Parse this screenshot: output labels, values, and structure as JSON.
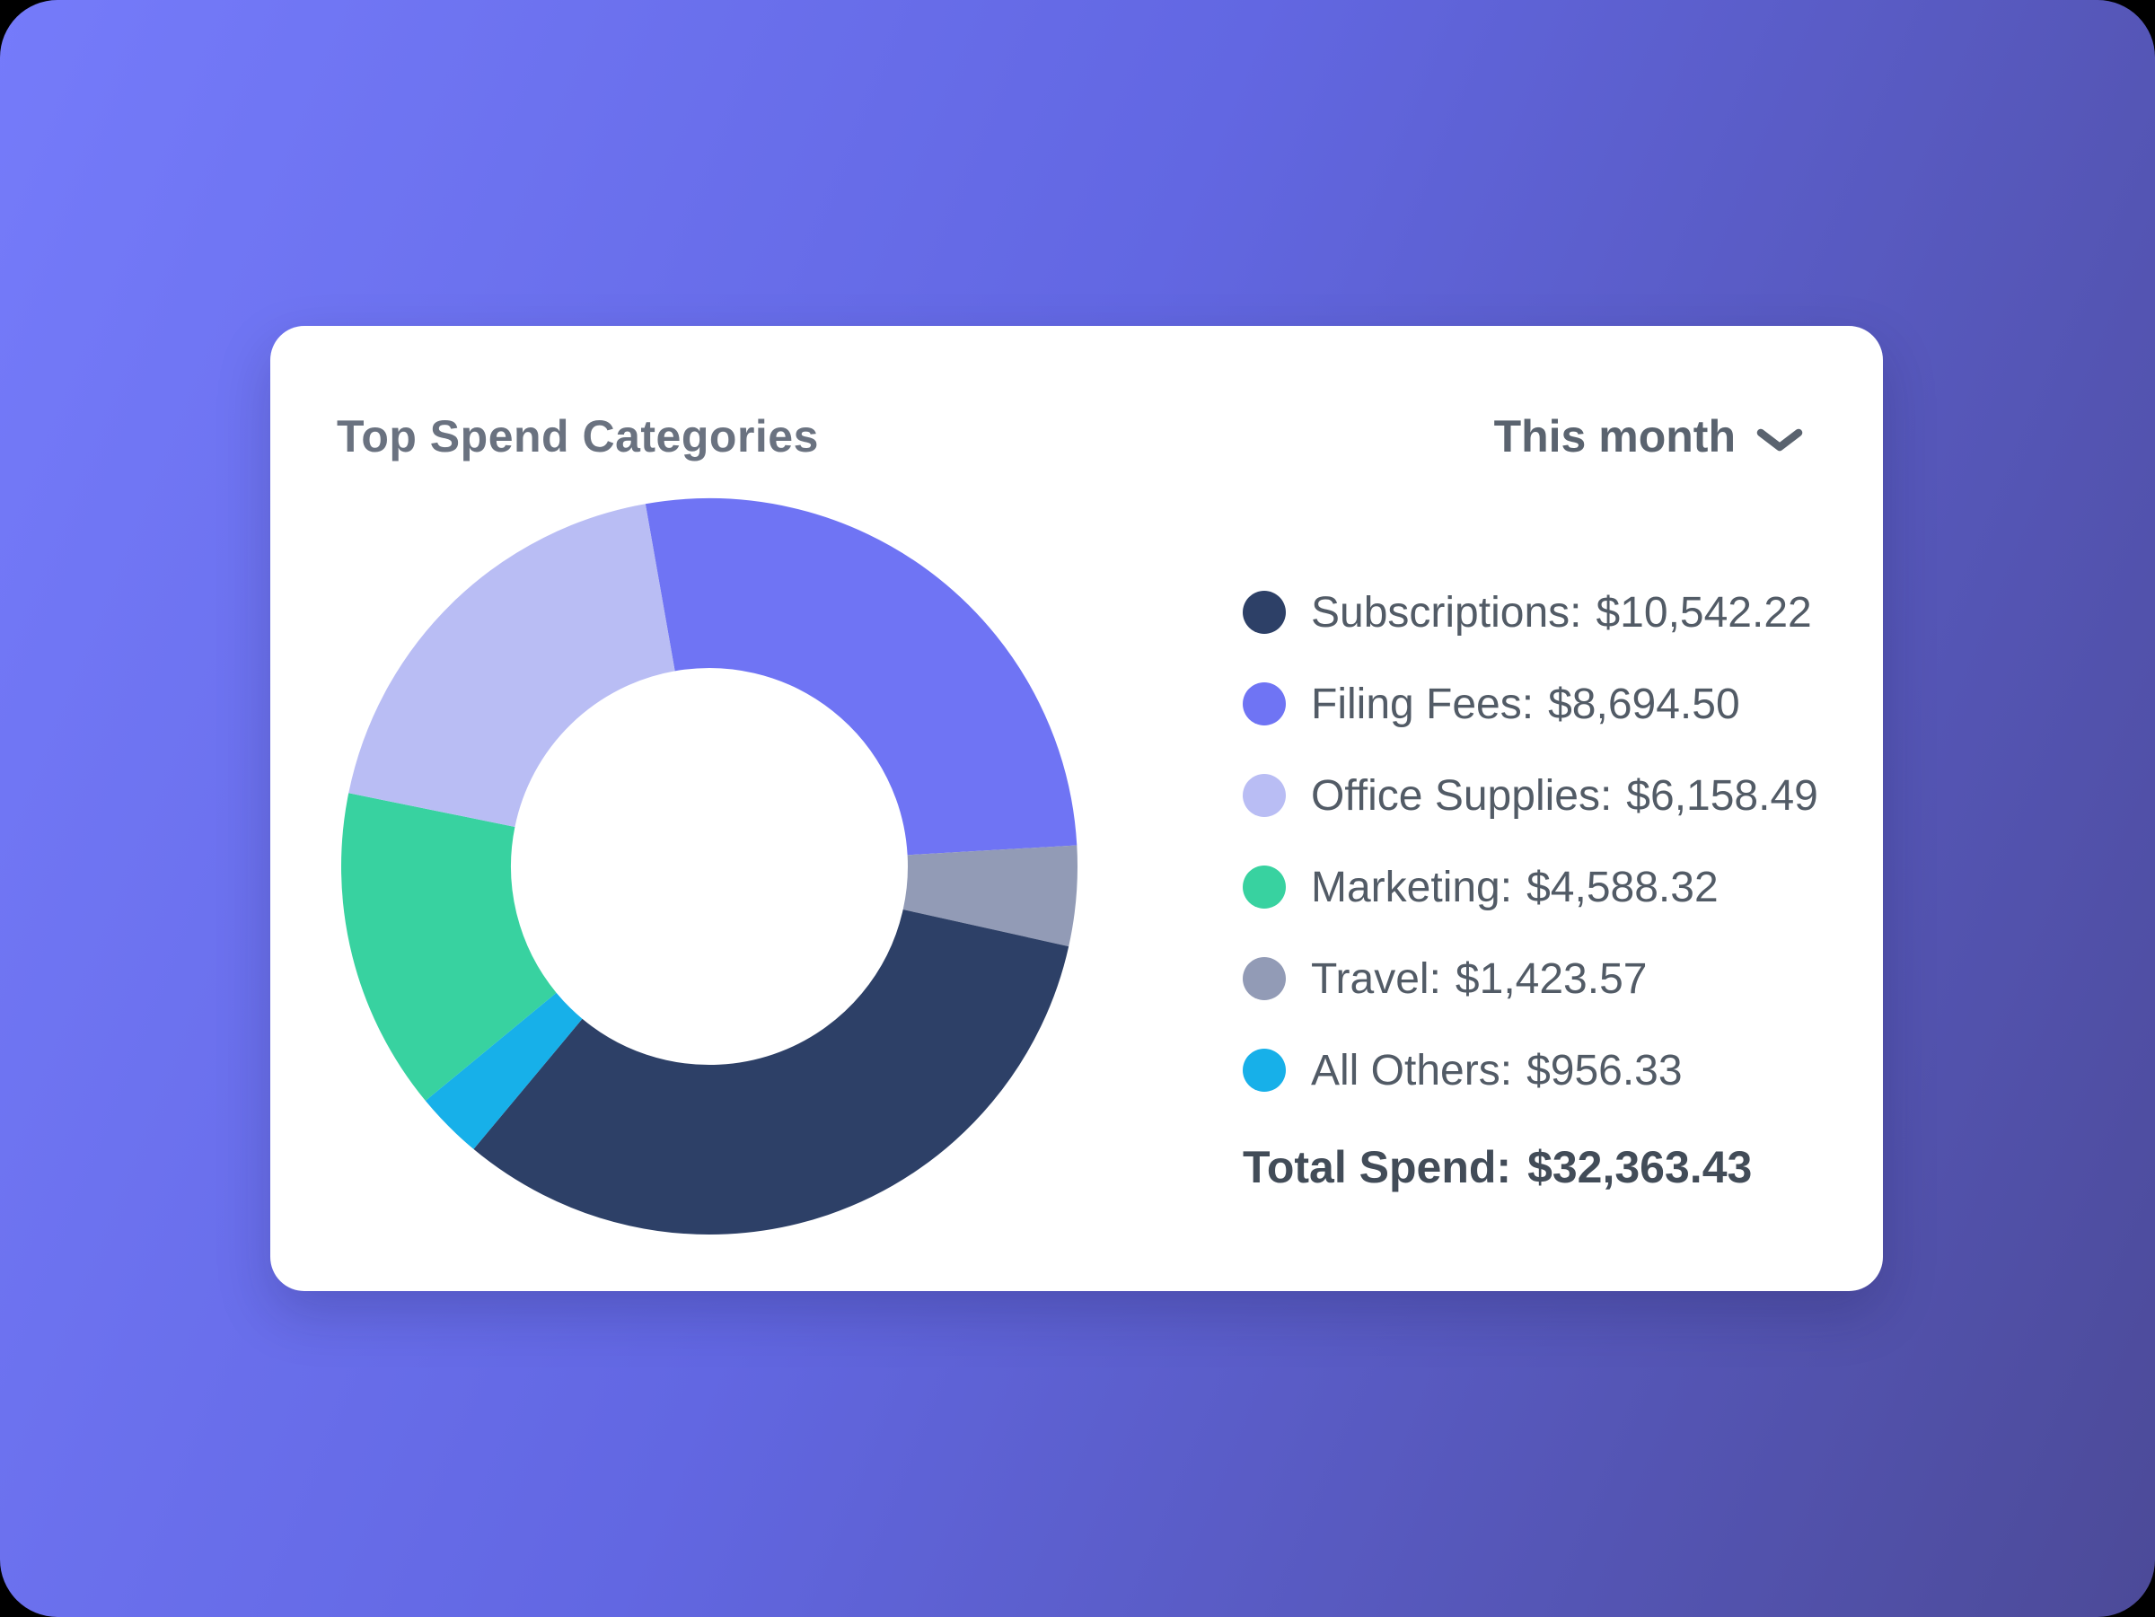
{
  "theme": {
    "background_gradient_start": "#757bfa",
    "background_gradient_mid": "#6267e2",
    "background_gradient_end": "#4c4a98",
    "card_background": "#ffffff",
    "title_color": "#6a7280",
    "period_color": "#5a636f",
    "legend_text_color": "#525b66",
    "total_text_color": "#424c58"
  },
  "card": {
    "period_selector": {
      "label": "This month",
      "icon": "chevron-down"
    }
  },
  "chart_data": {
    "type": "pie",
    "subtype": "donut",
    "title": "Top Spend Categories",
    "legend_position": "right",
    "start_angle_deg": -10,
    "inner_radius_ratio": 0.54,
    "clockwise_draw_order": [
      "Filing Fees",
      "Travel",
      "Subscriptions",
      "All Others",
      "Marketing",
      "Office Supplies"
    ],
    "categories": [
      {
        "label": "Subscriptions",
        "amount": "$10,542.22",
        "value": 10542.22,
        "color": "#2d4067"
      },
      {
        "label": "Filing Fees",
        "amount": "$8,694.50",
        "value": 8694.5,
        "color": "#6f74f4"
      },
      {
        "label": "Office Supplies",
        "amount": "$6,158.49",
        "value": 6158.49,
        "color": "#b9bdf4"
      },
      {
        "label": "Marketing",
        "amount": "$4,588.32",
        "value": 4588.32,
        "color": "#38d2a0"
      },
      {
        "label": "Travel",
        "amount": "$1,423.57",
        "value": 1423.57,
        "color": "#929bb6"
      },
      {
        "label": "All Others",
        "amount": "$956.33",
        "value": 956.33,
        "color": "#17b0e9"
      }
    ],
    "total_label": "Total Spend",
    "total_amount": "$32,363.43",
    "total_value": 32363.43
  }
}
